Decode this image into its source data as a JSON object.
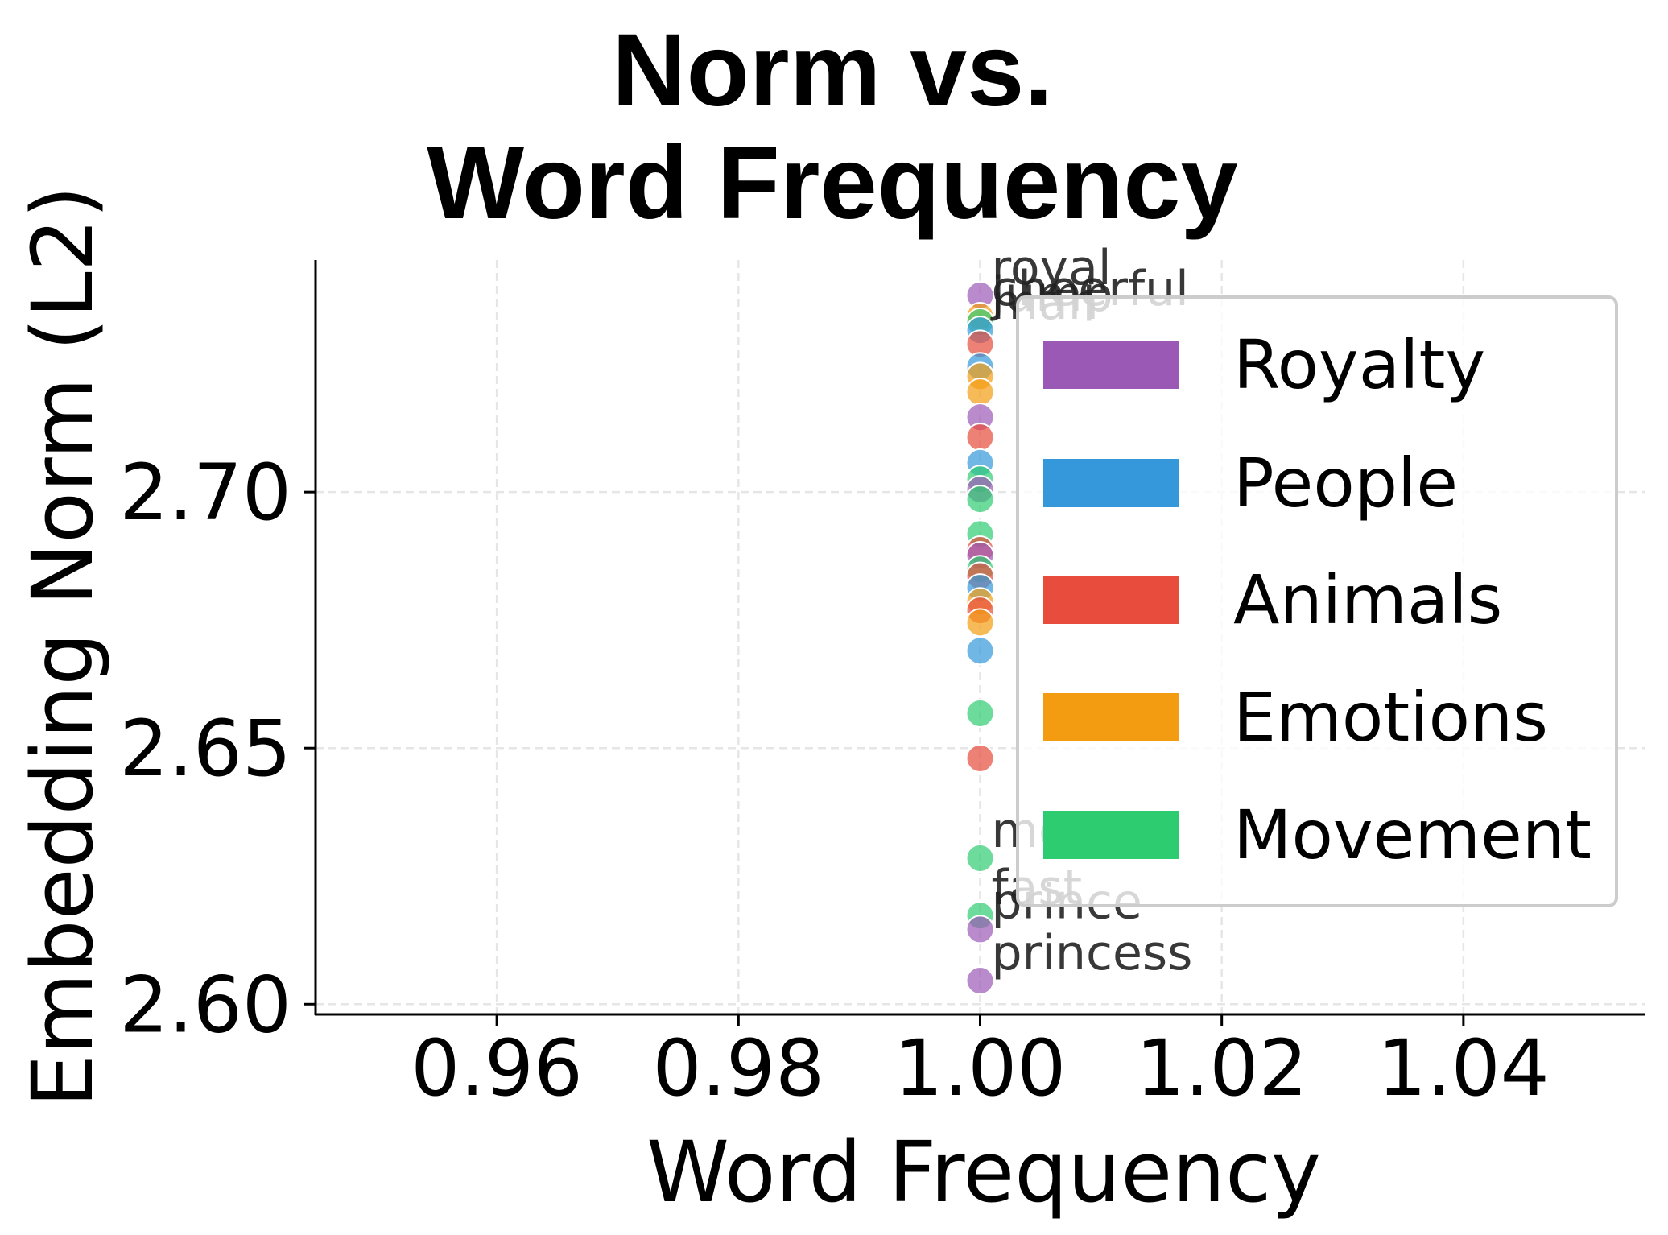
{
  "title": {
    "line1": "Norm vs.",
    "line2": "Word Frequency"
  },
  "axes": {
    "xlabel": "Word Frequency",
    "ylabel": "Embedding Norm (L2)"
  },
  "legend": {
    "items": [
      {
        "label": "Royalty",
        "color": "#9b59b6"
      },
      {
        "label": "People",
        "color": "#3498db"
      },
      {
        "label": "Animals",
        "color": "#e74c3c"
      },
      {
        "label": "Emotions",
        "color": "#f39c12"
      },
      {
        "label": "Movement",
        "color": "#2ecc71"
      }
    ]
  },
  "chart_data": {
    "type": "scatter",
    "title": "Norm vs. Word Frequency",
    "xlabel": "Word Frequency",
    "ylabel": "Embedding Norm (L2)",
    "xlim": [
      0.945,
      1.055
    ],
    "ylim": [
      2.598,
      2.7453
    ],
    "xticks": [
      0.96,
      0.98,
      1.0,
      1.02,
      1.04
    ],
    "xtick_labels": [
      "0.96",
      "0.98",
      "1.00",
      "1.02",
      "1.04"
    ],
    "yticks": [
      2.6,
      2.65,
      2.7
    ],
    "ytick_labels": [
      "2.60",
      "2.65",
      "2.70"
    ],
    "grid": true,
    "legend_position": "upper right",
    "categories": [
      "Royalty",
      "People",
      "Animals",
      "Emotions",
      "Movement"
    ],
    "colors": {
      "Royalty": "#9b59b6",
      "People": "#3498db",
      "Animals": "#e74c3c",
      "Emotions": "#f39c12",
      "Movement": "#2ecc71"
    },
    "points": [
      {
        "x": 1.0,
        "y": 2.7384,
        "category": "Royalty",
        "label": "royal"
      },
      {
        "x": 1.0,
        "y": 2.7343,
        "category": "Emotions",
        "label": "cheerful"
      },
      {
        "x": 1.0,
        "y": 2.7332,
        "category": "Movement",
        "label": "jump"
      },
      {
        "x": 1.0,
        "y": 2.7316,
        "category": "People",
        "label": "man"
      },
      {
        "x": 1.0,
        "y": 2.7289,
        "category": "Animals"
      },
      {
        "x": 1.0,
        "y": 2.7245,
        "category": "People"
      },
      {
        "x": 1.0,
        "y": 2.7226,
        "category": "Emotions"
      },
      {
        "x": 1.0,
        "y": 2.7195,
        "category": "Emotions"
      },
      {
        "x": 1.0,
        "y": 2.7146,
        "category": "Royalty"
      },
      {
        "x": 1.0,
        "y": 2.7107,
        "category": "Animals"
      },
      {
        "x": 1.0,
        "y": 2.7057,
        "category": "People"
      },
      {
        "x": 1.0,
        "y": 2.7025,
        "category": "Movement"
      },
      {
        "x": 1.0,
        "y": 2.7005,
        "category": "Royalty"
      },
      {
        "x": 1.0,
        "y": 2.6986,
        "category": "Movement"
      },
      {
        "x": 1.0,
        "y": 2.6918,
        "category": "Movement"
      },
      {
        "x": 1.0,
        "y": 2.6887,
        "category": "Animals"
      },
      {
        "x": 1.0,
        "y": 2.6876,
        "category": "Royalty"
      },
      {
        "x": 1.0,
        "y": 2.6849,
        "category": "Movement"
      },
      {
        "x": 1.0,
        "y": 2.6836,
        "category": "Animals"
      },
      {
        "x": 1.0,
        "y": 2.6813,
        "category": "People"
      },
      {
        "x": 1.0,
        "y": 2.6786,
        "category": "Emotions"
      },
      {
        "x": 1.0,
        "y": 2.6769,
        "category": "Animals"
      },
      {
        "x": 1.0,
        "y": 2.6745,
        "category": "Emotions"
      },
      {
        "x": 1.0,
        "y": 2.669,
        "category": "People"
      },
      {
        "x": 1.0,
        "y": 2.6568,
        "category": "Movement"
      },
      {
        "x": 1.0,
        "y": 2.648,
        "category": "Animals"
      },
      {
        "x": 1.0,
        "y": 2.6285,
        "category": "Movement",
        "label": "move"
      },
      {
        "x": 1.0,
        "y": 2.6173,
        "category": "Movement",
        "label": "fast"
      },
      {
        "x": 1.0,
        "y": 2.6146,
        "category": "Royalty",
        "label": "prince"
      },
      {
        "x": 1.0,
        "y": 2.6046,
        "category": "Royalty",
        "label": "princess"
      }
    ]
  }
}
